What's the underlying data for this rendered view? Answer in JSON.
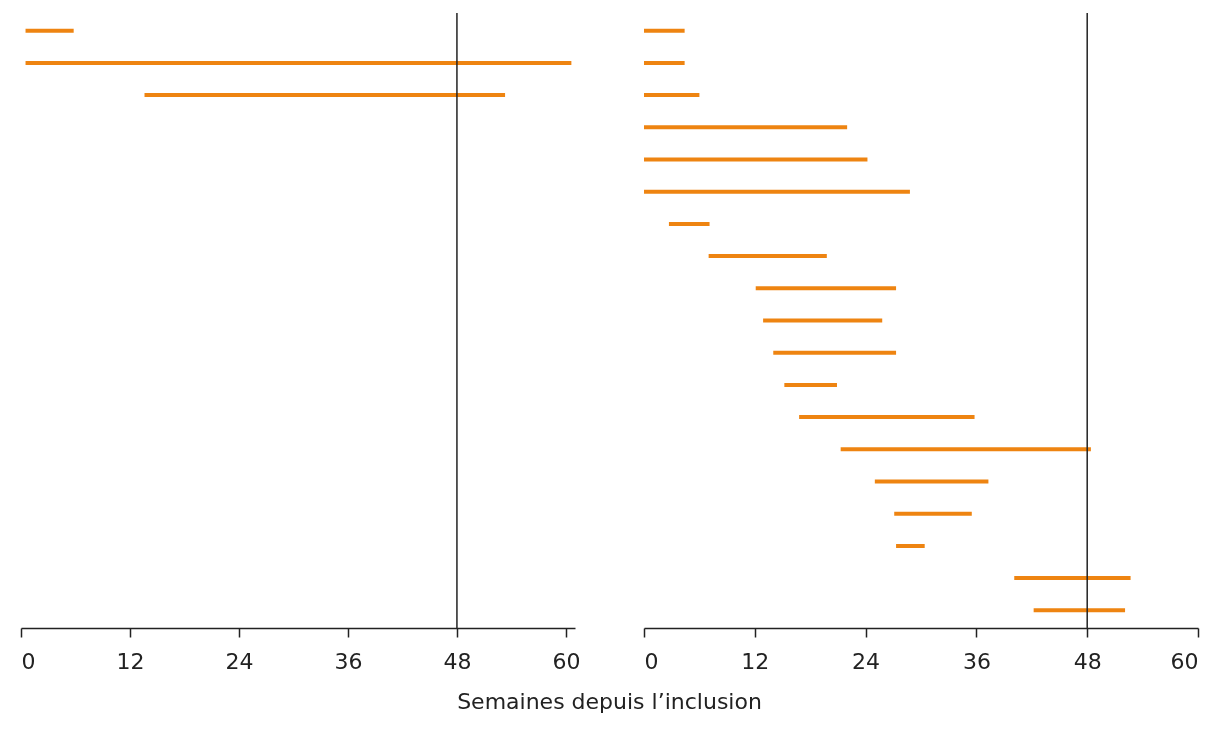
{
  "chart_data": [
    {
      "type": "bar",
      "orientation": "horizontal",
      "xlabel": "Semaines depuis l’inclusion",
      "color": "#ee8411",
      "categories": [
        null,
        null,
        null,
        null,
        null,
        null,
        null,
        null,
        null,
        null,
        null,
        null,
        null,
        null,
        null,
        null,
        null,
        null,
        null
      ],
      "base": [
        0.5,
        0.5,
        13.6,
        null,
        null,
        null,
        null,
        null,
        null,
        null,
        null,
        null,
        null,
        null,
        null,
        null,
        null,
        null,
        null
      ],
      "values": [
        5.3,
        60.1,
        39.7,
        null,
        null,
        null,
        null,
        null,
        null,
        null,
        null,
        null,
        null,
        null,
        null,
        null,
        null,
        null,
        null
      ],
      "xlim": [
        0,
        61
      ],
      "xticks": [
        0,
        12,
        24,
        36,
        48,
        60
      ],
      "ref_lines": [
        {
          "axis": "x",
          "value": 48,
          "color": "#222222"
        }
      ]
    },
    {
      "type": "bar",
      "orientation": "horizontal",
      "color": "#ee8411",
      "categories": [
        null,
        null,
        null,
        null,
        null,
        null,
        null,
        null,
        null,
        null,
        null,
        null,
        null,
        null,
        null,
        null,
        null,
        null,
        null
      ],
      "base": [
        0,
        0,
        0,
        0,
        0,
        0,
        2.7,
        7.0,
        12.1,
        12.9,
        14.0,
        15.2,
        16.8,
        21.3,
        25.0,
        27.1,
        27.3,
        40.1,
        42.2
      ],
      "values": [
        4.4,
        4.4,
        6.0,
        22.0,
        24.2,
        28.8,
        4.4,
        12.8,
        15.2,
        12.9,
        13.3,
        5.7,
        19.0,
        27.1,
        12.3,
        8.4,
        3.1,
        12.6,
        9.9
      ],
      "xlim": [
        0,
        60
      ],
      "xticks": [
        0,
        12,
        24,
        36,
        48,
        60
      ],
      "ref_lines": [
        {
          "axis": "x",
          "value": 48,
          "color": "#222222"
        }
      ]
    }
  ]
}
